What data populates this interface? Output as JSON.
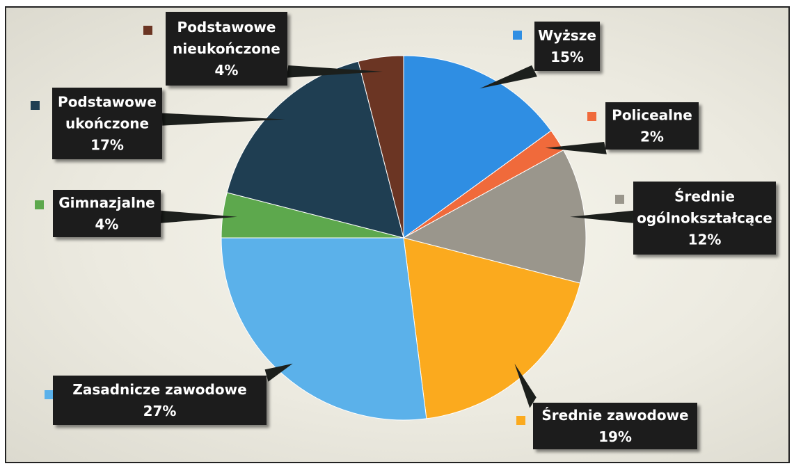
{
  "chart_data": {
    "type": "pie",
    "slices": [
      {
        "name": "Wyższe",
        "value": 15,
        "pct_label": "15%",
        "color": "#2f8ee3"
      },
      {
        "name": "Policealne",
        "value": 2,
        "pct_label": "2%",
        "color": "#f06a3b"
      },
      {
        "name": "Średnie ogólnokształcące",
        "value": 12,
        "pct_label": "12%",
        "color": "#9a968c"
      },
      {
        "name": "Średnie zawodowe",
        "value": 19,
        "pct_label": "19%",
        "color": "#fbaa1e"
      },
      {
        "name": "Zasadnicze zawodowe",
        "value": 27,
        "pct_label": "27%",
        "color": "#5bb1ea"
      },
      {
        "name": "Gimnazjalne",
        "value": 4,
        "pct_label": "4%",
        "color": "#5da84d"
      },
      {
        "name": "Podstawowe ukończone",
        "value": 17,
        "pct_label": "17%",
        "color": "#1f3e52"
      },
      {
        "name": "Podstawowe nieukończone",
        "value": 4,
        "pct_label": "4%",
        "color": "#6b3523"
      }
    ]
  },
  "labels": [
    {
      "lines": [
        "Wyższe",
        "15%"
      ]
    },
    {
      "lines": [
        "Policealne",
        "2%"
      ]
    },
    {
      "lines": [
        "Średnie",
        "ogólnokształcące",
        "12%"
      ]
    },
    {
      "lines": [
        "Średnie zawodowe",
        "19%"
      ]
    },
    {
      "lines": [
        "Zasadnicze zawodowe",
        "27%"
      ]
    },
    {
      "lines": [
        "Gimnazjalne",
        "4%"
      ]
    },
    {
      "lines": [
        "Podstawowe",
        "ukończone",
        "17%"
      ]
    },
    {
      "lines": [
        "Podstawowe",
        "nieukończone",
        "4%"
      ]
    }
  ]
}
